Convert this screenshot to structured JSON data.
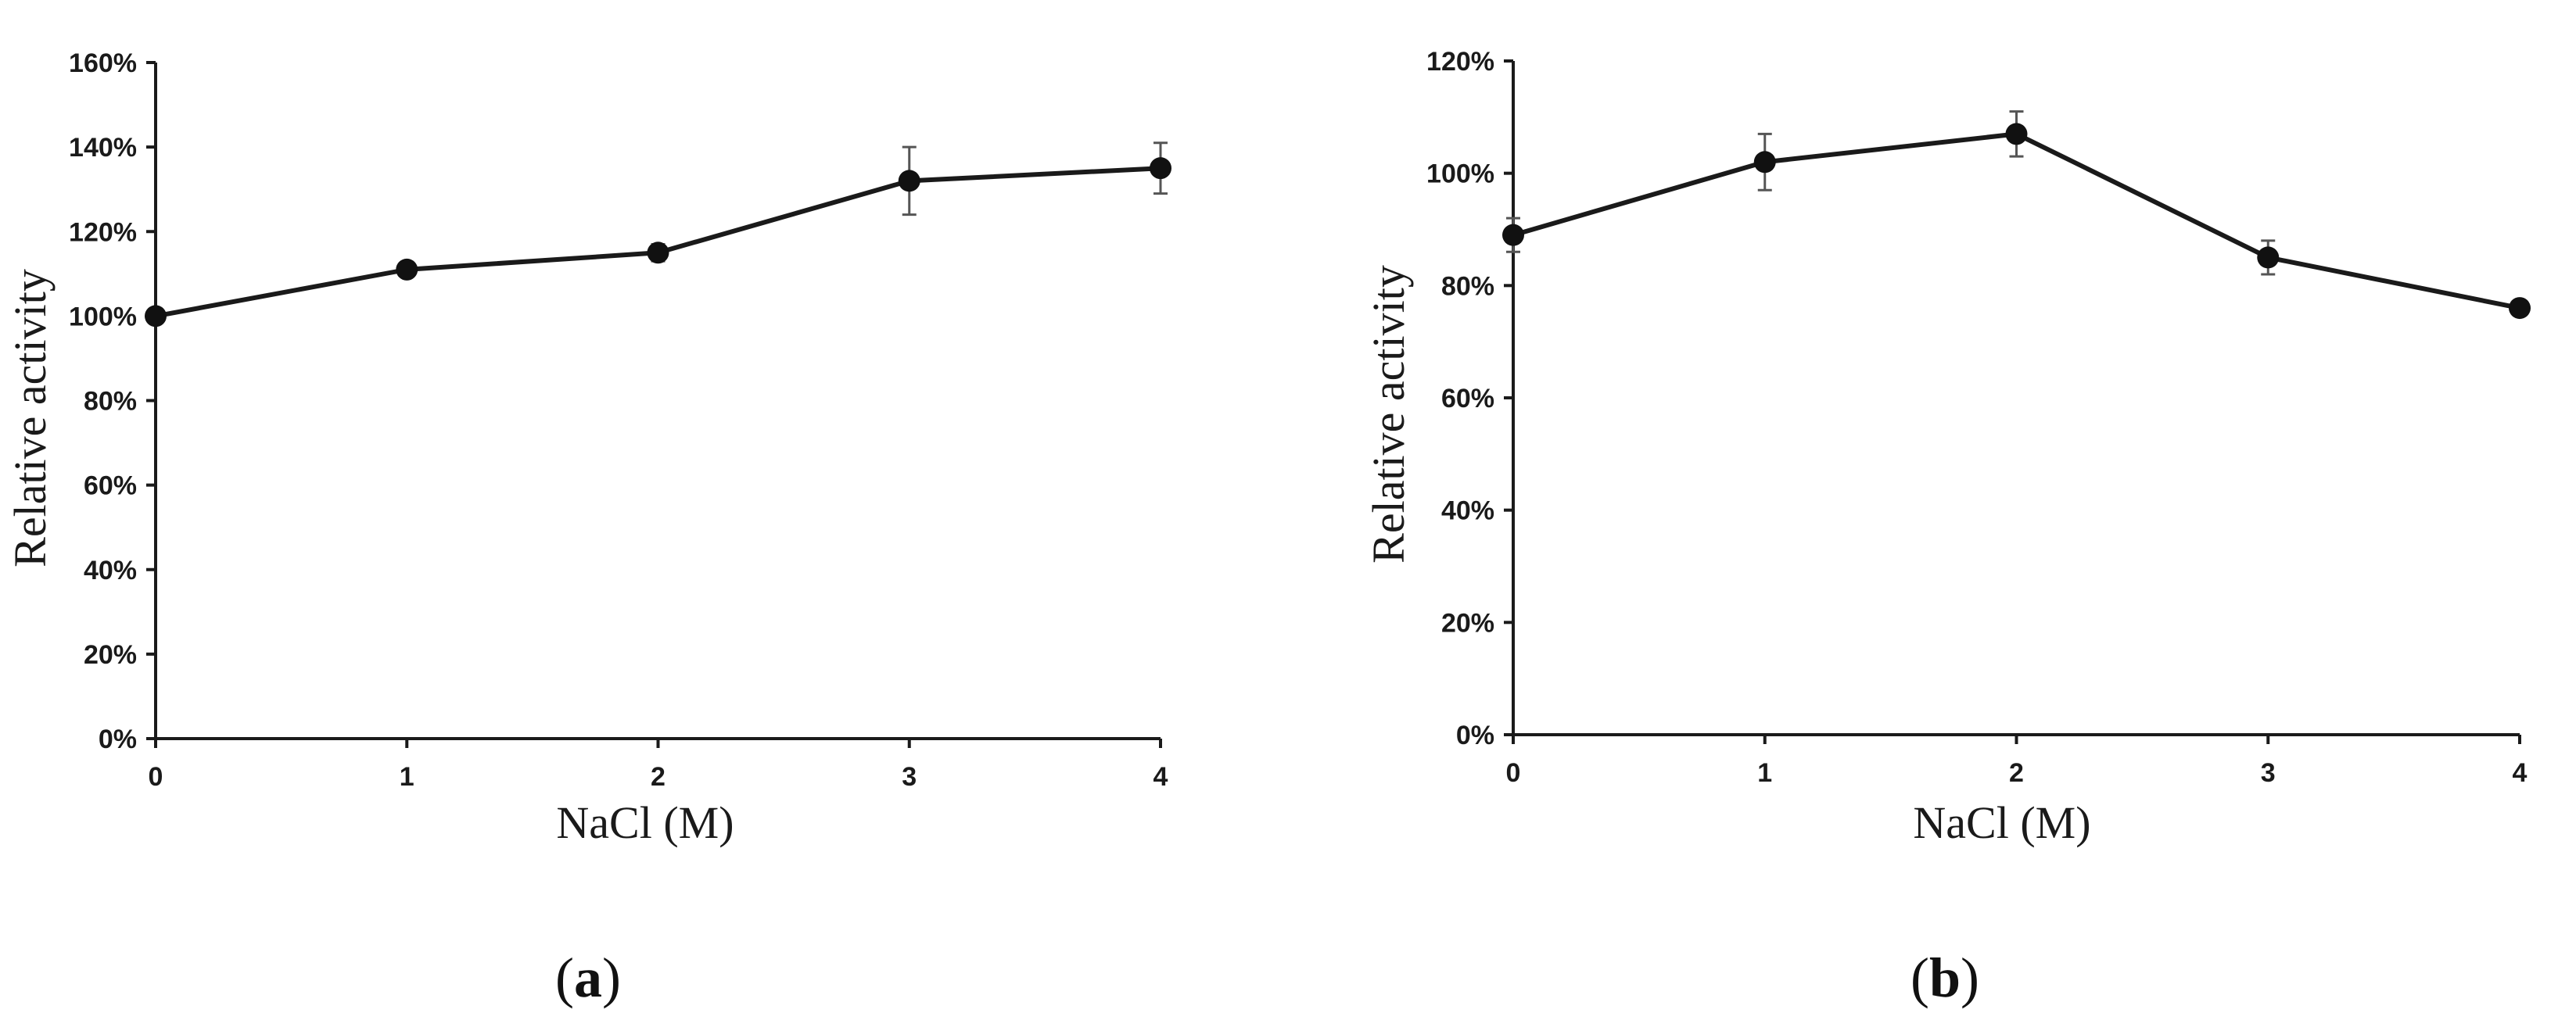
{
  "chart_data": [
    {
      "panel_label": "a",
      "type": "line",
      "xlabel": "NaCl (M)",
      "ylabel": "Relative activity",
      "x": [
        0,
        1,
        2,
        3,
        4
      ],
      "x_ticks": [
        "0",
        "1",
        "2",
        "3",
        "4"
      ],
      "y_ticks": [
        "0%",
        "20%",
        "40%",
        "60%",
        "80%",
        "100%",
        "120%",
        "140%",
        "160%"
      ],
      "ylim": [
        0,
        160
      ],
      "series": [
        {
          "values": [
            100,
            111,
            115,
            132,
            135
          ],
          "errors": [
            0,
            0,
            2,
            8,
            6
          ]
        }
      ],
      "grid": false,
      "legend": "none"
    },
    {
      "panel_label": "b",
      "type": "line",
      "xlabel": "NaCl (M)",
      "ylabel": "Relative activity",
      "x": [
        0,
        1,
        2,
        3,
        4
      ],
      "x_ticks": [
        "0",
        "1",
        "2",
        "3",
        "4"
      ],
      "y_ticks": [
        "0%",
        "20%",
        "40%",
        "60%",
        "80%",
        "100%",
        "120%"
      ],
      "ylim": [
        0,
        120
      ],
      "series": [
        {
          "values": [
            89,
            102,
            107,
            85,
            76
          ],
          "errors": [
            3,
            5,
            4,
            3,
            1
          ]
        }
      ],
      "grid": false,
      "legend": "none"
    }
  ]
}
